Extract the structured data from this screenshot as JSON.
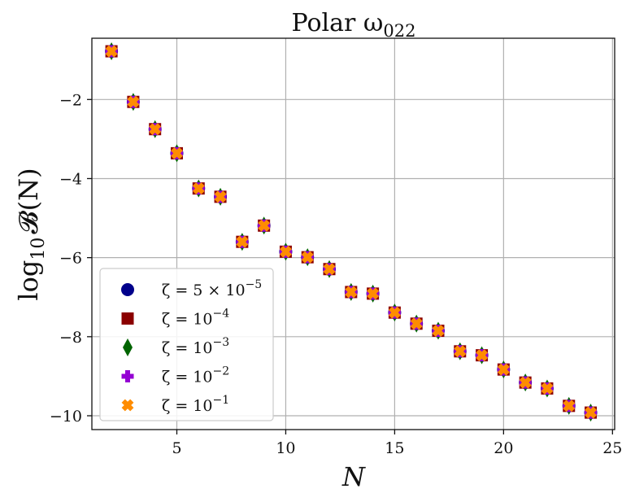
{
  "chart_data": {
    "type": "scatter",
    "title": "Polar ω",
    "title_sub": "022",
    "xlabel": "N",
    "ylabel_prefix": "log",
    "ylabel_sub": "10",
    "ylabel_main": "𝓑(N)",
    "xlim": [
      1.1,
      25.1
    ],
    "ylim": [
      -10.35,
      -0.45
    ],
    "xticks": [
      5,
      10,
      15,
      20,
      25
    ],
    "yticks": [
      -2,
      -4,
      -6,
      -8,
      -10
    ],
    "xtick_labels": [
      "5",
      "10",
      "15",
      "20",
      "25"
    ],
    "ytick_labels": [
      "−2",
      "−4",
      "−6",
      "−8",
      "−10"
    ],
    "grid": true,
    "legend_position": "lower-left",
    "x": [
      2,
      3,
      4,
      5,
      6,
      7,
      8,
      9,
      10,
      11,
      12,
      13,
      14,
      15,
      16,
      17,
      18,
      19,
      20,
      21,
      22,
      23,
      24
    ],
    "y": [
      -0.78,
      -2.06,
      -2.75,
      -3.36,
      -4.25,
      -4.46,
      -5.6,
      -5.19,
      -5.85,
      -5.99,
      -6.29,
      -6.87,
      -6.91,
      -7.39,
      -7.67,
      -7.85,
      -8.37,
      -8.47,
      -8.83,
      -9.16,
      -9.31,
      -9.75,
      -9.92
    ],
    "series": [
      {
        "name_base": "ζ = 5 × 10",
        "name_exp": "−5",
        "marker": "circle",
        "color": "#00008b",
        "values_ref": "y"
      },
      {
        "name_base": "ζ = 10",
        "name_exp": "−4",
        "marker": "square",
        "color": "#8b0000",
        "values_ref": "y"
      },
      {
        "name_base": "ζ = 10",
        "name_exp": "−3",
        "marker": "diamond",
        "color": "#006400",
        "values_ref": "y"
      },
      {
        "name_base": "ζ = 10",
        "name_exp": "−2",
        "marker": "plus",
        "color": "#9400d3",
        "values_ref": "y"
      },
      {
        "name_base": "ζ = 10",
        "name_exp": "−1",
        "marker": "x",
        "color": "#ff8c00",
        "values_ref": "y"
      }
    ]
  }
}
